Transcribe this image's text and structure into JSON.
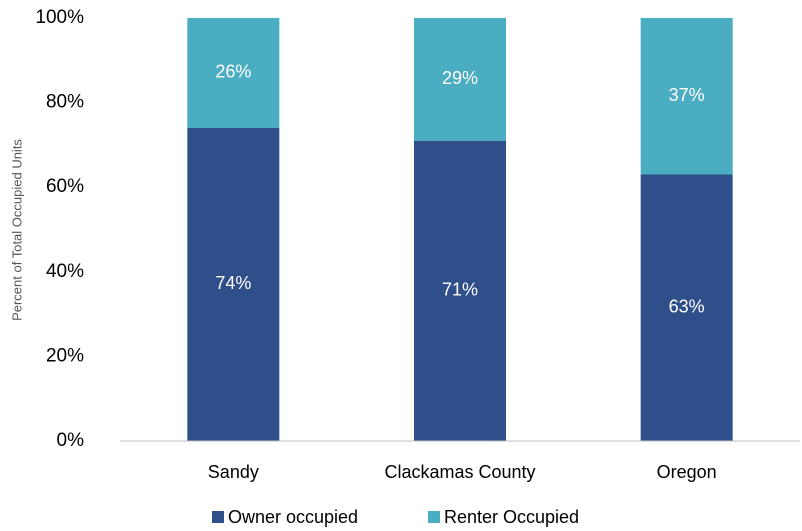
{
  "chart_data": {
    "type": "stacked_bar",
    "y_axis_label": "Percent of Total Occupied Units",
    "categories": [
      "Sandy",
      "Clackamas County",
      "Oregon"
    ],
    "series": [
      {
        "name": "Owner occupied",
        "color": "#2e4f8a",
        "values": [
          74,
          71,
          63
        ],
        "value_labels": [
          "74%",
          "71%",
          "63%"
        ]
      },
      {
        "name": "Renter Occupied",
        "color": "#4aadc1",
        "values": [
          26,
          29,
          37
        ],
        "value_labels": [
          "26%",
          "29%",
          "37%"
        ]
      }
    ],
    "ylim": [
      0,
      100
    ],
    "yticks": [
      {
        "value": 0,
        "label": "0%"
      },
      {
        "value": 20,
        "label": "20%"
      },
      {
        "value": 40,
        "label": "40%"
      },
      {
        "value": 60,
        "label": "60%"
      },
      {
        "value": 80,
        "label": "80%"
      },
      {
        "value": 100,
        "label": "100%"
      }
    ],
    "grid": false,
    "legend": "bottom"
  }
}
